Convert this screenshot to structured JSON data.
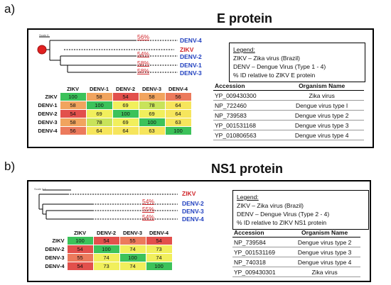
{
  "panel_a": {
    "letter": "a)",
    "title": "E protein",
    "scale_label": "Scale 0",
    "tree": {
      "taxa": [
        "DENV-4",
        "ZIKV",
        "DENV-2",
        "DENV-1",
        "DENV-3"
      ],
      "percents": [
        "56%",
        "54%",
        "58%",
        "58%"
      ]
    },
    "legend": {
      "title": "Legend:",
      "lines": [
        "ZIKV – Zika virus (Brazil)",
        "DENV – Dengue Virus (Type 1 - 4)",
        "% ID relative to ZIKV E protein"
      ]
    },
    "heatmap": {
      "cols": [
        "ZIKV",
        "DENV-1",
        "DENV-2",
        "DENV-3",
        "DENV-4"
      ],
      "rows": [
        "ZIKV",
        "DENV-1",
        "DENV-2",
        "DENV-3",
        "DENV-4"
      ],
      "values": [
        [
          "100",
          "58",
          "54",
          "58",
          "56"
        ],
        [
          "58",
          "100",
          "69",
          "78",
          "64"
        ],
        [
          "54",
          "69",
          "100",
          "69",
          "64"
        ],
        [
          "58",
          "78",
          "69",
          "100",
          "63"
        ],
        [
          "56",
          "64",
          "64",
          "63",
          "100"
        ]
      ]
    },
    "accession_table": {
      "headers": [
        "Accession",
        "Organism Name"
      ],
      "rows": [
        [
          "YP_009430300",
          "Zika virus"
        ],
        [
          "NP_722460",
          "Dengue virus type I"
        ],
        [
          "NP_739583",
          "Dengue virus type 2"
        ],
        [
          "YP_001531168",
          "Dengue virus type 3"
        ],
        [
          "YP_010806563",
          "Dengue virus type 4"
        ]
      ]
    }
  },
  "panel_b": {
    "letter": "b)",
    "title": "NS1 protein",
    "scale_label": "Scale 0.1",
    "tree": {
      "taxa": [
        "ZIKV",
        "DENV-2",
        "DENV-3",
        "DENV-4"
      ],
      "percents": [
        "54%",
        "55%",
        "54%"
      ]
    },
    "legend": {
      "title": "Legend:",
      "lines": [
        "ZIKV – Zika virus (Brazil)",
        "DENV – Dengue Virus (Type 2 - 4)",
        "% ID relative to ZIKV NS1 protein"
      ]
    },
    "heatmap": {
      "cols": [
        "ZIKV",
        "DENV-2",
        "DENV-3",
        "DENV-4"
      ],
      "rows": [
        "ZIKV",
        "DENV-2",
        "DENV-3",
        "DENV-4"
      ],
      "values": [
        [
          "100",
          "54",
          "55",
          "54"
        ],
        [
          "54",
          "100",
          "74",
          "73"
        ],
        [
          "55",
          "74",
          "100",
          "74"
        ],
        [
          "54",
          "73",
          "74",
          "100"
        ]
      ]
    },
    "accession_table": {
      "headers": [
        "Accession",
        "Organism Name"
      ],
      "rows": [
        [
          "NP_739584",
          "Dengue virus type 2"
        ],
        [
          "YP_001531169",
          "Dengue virus type 3"
        ],
        [
          "NP_740318",
          "Dengue virus type 4"
        ],
        [
          "YP_009430301",
          "Zika virus"
        ]
      ]
    }
  },
  "colors": {
    "zikv": "#d0262b",
    "denv": "#1f3fbf",
    "percent": "#d0262b",
    "root_dot": "#e02020"
  }
}
